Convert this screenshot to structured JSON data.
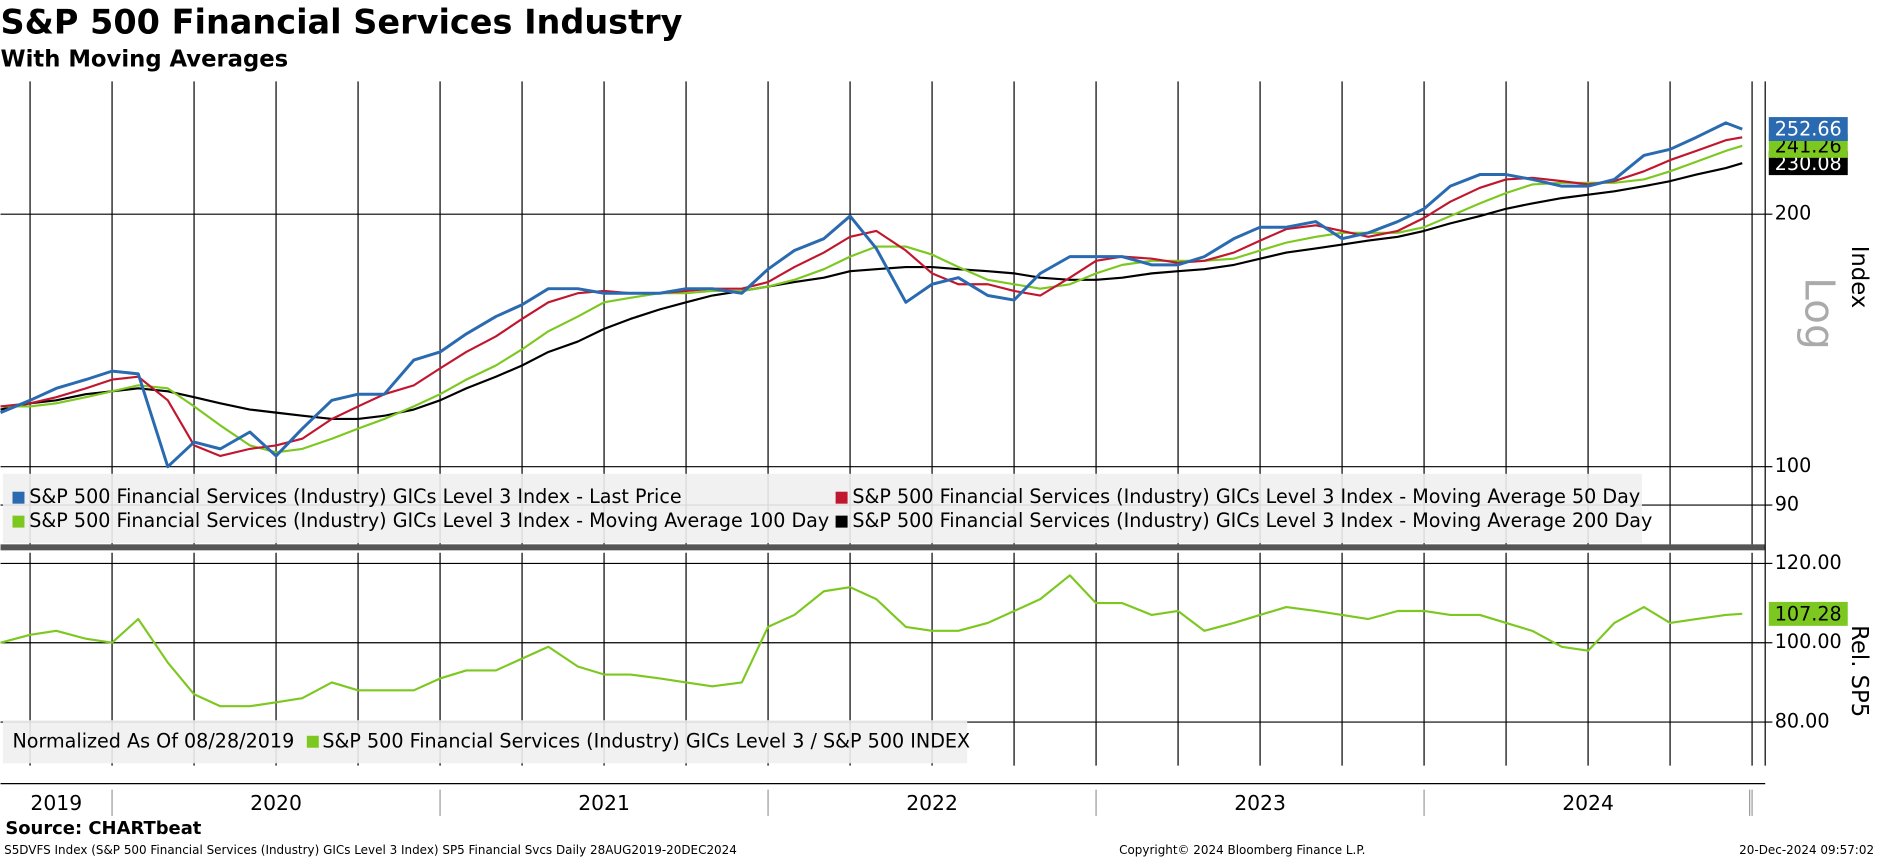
{
  "chart_data": [
    {
      "type": "line",
      "title": "S&P 500 Financial Services Industry",
      "subtitle": "With Moving Averages",
      "log": true,
      "y_axis_label": "Index",
      "scale_label": "Log",
      "x": [
        2019.66,
        2019.75,
        2019.83,
        2019.92,
        2020.0,
        2020.08,
        2020.17,
        2020.25,
        2020.33,
        2020.42,
        2020.5,
        2020.58,
        2020.67,
        2020.75,
        2020.83,
        2020.92,
        2021.0,
        2021.08,
        2021.17,
        2021.25,
        2021.33,
        2021.42,
        2021.5,
        2021.58,
        2021.67,
        2021.75,
        2021.83,
        2021.92,
        2022.0,
        2022.08,
        2022.17,
        2022.25,
        2022.33,
        2022.42,
        2022.5,
        2022.58,
        2022.67,
        2022.75,
        2022.83,
        2022.92,
        2023.0,
        2023.08,
        2023.17,
        2023.25,
        2023.33,
        2023.42,
        2023.5,
        2023.58,
        2023.67,
        2023.75,
        2023.83,
        2023.92,
        2024.0,
        2024.08,
        2024.17,
        2024.25,
        2024.33,
        2024.42,
        2024.5,
        2024.58,
        2024.67,
        2024.75,
        2024.83,
        2024.92,
        2024.97
      ],
      "xlim": [
        2019.66,
        2025.04
      ],
      "ylim": [
        80.8,
        288
      ],
      "yticks": [
        90,
        100,
        200
      ],
      "series": [
        {
          "name": "S&P 500 Financial Services (Industry) GICs Level 3 Index - Last Price",
          "color": "#2a6ab0",
          "last_label": true,
          "values": [
            116,
            120,
            124,
            127,
            130,
            129,
            100,
            107,
            105,
            110,
            103,
            111,
            120,
            122,
            122,
            134,
            137,
            144,
            151,
            156,
            163,
            163,
            161,
            161,
            161,
            163,
            163,
            161,
            172,
            181,
            187,
            199,
            182,
            157,
            165,
            168,
            160,
            158,
            170,
            178,
            178,
            178,
            174,
            174,
            178,
            187,
            193,
            193,
            196,
            187,
            190,
            196,
            203,
            216,
            223,
            223,
            220,
            216,
            216,
            220,
            235,
            239,
            247,
            257,
            252.66
          ]
        },
        {
          "name": "S&P 500 Financial Services (Industry) GICs Level 3 Index - Moving Average 50 Day",
          "color": "#c0172f",
          "last_label": false,
          "values": [
            118,
            119,
            121,
            124,
            127,
            128,
            120,
            106,
            103,
            105,
            106,
            108,
            114,
            118,
            122,
            125,
            131,
            137,
            143,
            150,
            157,
            161,
            162,
            161,
            161,
            162,
            163,
            163,
            166,
            173,
            180,
            188,
            191,
            181,
            170,
            165,
            165,
            162,
            160,
            168,
            176,
            178,
            177,
            175,
            176,
            180,
            186,
            192,
            194,
            191,
            188,
            191,
            198,
            207,
            215,
            220,
            221,
            219,
            217,
            219,
            225,
            232,
            238,
            245,
            247
          ]
        },
        {
          "name": "S&P 500 Financial Services (Industry) GICs Level 3 Index - Moving Average 100 Day",
          "color": "#7dc820",
          "last_label": true,
          "values": [
            118,
            118,
            119,
            121,
            123,
            125,
            124,
            118,
            112,
            106,
            104,
            105,
            108,
            111,
            114,
            118,
            122,
            127,
            132,
            138,
            145,
            151,
            157,
            159,
            161,
            161,
            162,
            162,
            164,
            167,
            172,
            178,
            183,
            183,
            179,
            173,
            167,
            165,
            163,
            165,
            170,
            174,
            176,
            176,
            176,
            177,
            181,
            185,
            188,
            190,
            190,
            190,
            193,
            199,
            206,
            212,
            217,
            218,
            218,
            218,
            220,
            225,
            231,
            238,
            241.26
          ]
        },
        {
          "name": "S&P 500 Financial Services (Industry) GICs Level 3 Index - Moving Average 200 Day",
          "color": "#000000",
          "last_label": true,
          "values": [
            117,
            119,
            120,
            122,
            123,
            124,
            123,
            121,
            119,
            117,
            116,
            115,
            114,
            114,
            115,
            117,
            120,
            124,
            128,
            132,
            137,
            141,
            146,
            150,
            154,
            157,
            160,
            162,
            164,
            166,
            168,
            171,
            172,
            173,
            173,
            172,
            171,
            170,
            168,
            167,
            167,
            168,
            170,
            171,
            172,
            174,
            177,
            180,
            182,
            184,
            186,
            188,
            191,
            195,
            199,
            203,
            206,
            209,
            211,
            213,
            216,
            219,
            223,
            227,
            230.08
          ]
        }
      ]
    },
    {
      "type": "line",
      "log": false,
      "y_axis_label": "Rel. SP5",
      "legend_note": "Normalized As Of 08/28/2019",
      "x": [
        2019.66,
        2019.75,
        2019.83,
        2019.92,
        2020.0,
        2020.08,
        2020.17,
        2020.25,
        2020.33,
        2020.42,
        2020.5,
        2020.58,
        2020.67,
        2020.75,
        2020.83,
        2020.92,
        2021.0,
        2021.08,
        2021.17,
        2021.25,
        2021.33,
        2021.42,
        2021.5,
        2021.58,
        2021.67,
        2021.75,
        2021.83,
        2021.92,
        2022.0,
        2022.08,
        2022.17,
        2022.25,
        2022.33,
        2022.42,
        2022.5,
        2022.58,
        2022.67,
        2022.75,
        2022.83,
        2022.92,
        2023.0,
        2023.08,
        2023.17,
        2023.25,
        2023.33,
        2023.42,
        2023.5,
        2023.58,
        2023.67,
        2023.75,
        2023.83,
        2023.92,
        2024.0,
        2024.08,
        2024.17,
        2024.25,
        2024.33,
        2024.42,
        2024.5,
        2024.58,
        2024.67,
        2024.75,
        2024.83,
        2024.92,
        2024.97
      ],
      "xlim": [
        2019.66,
        2025.04
      ],
      "ylim": [
        69,
        122.7
      ],
      "yticks": [
        {
          "value": 80,
          "label": "80.00"
        },
        {
          "value": 100,
          "label": "100.00"
        },
        {
          "value": 120,
          "label": "120.00"
        }
      ],
      "xticks": [
        {
          "value": 2019.83,
          "label": "2019"
        },
        {
          "value": 2020.5,
          "label": "2020"
        },
        {
          "value": 2021.5,
          "label": "2021"
        },
        {
          "value": 2022.5,
          "label": "2022"
        },
        {
          "value": 2023.5,
          "label": "2023"
        },
        {
          "value": 2024.5,
          "label": "2024"
        }
      ],
      "series": [
        {
          "name": "S&P 500 Financial Services (Industry) GICs Level 3 / S&P 500 INDEX",
          "color": "#7dc820",
          "last_label": true,
          "values": [
            100,
            102,
            103,
            101,
            100,
            106,
            95,
            87,
            84,
            84,
            85,
            86,
            90,
            88,
            88,
            88,
            91,
            93,
            93,
            96,
            99,
            94,
            92,
            92,
            91,
            90,
            89,
            90,
            104,
            107,
            113,
            114,
            111,
            104,
            103,
            103,
            105,
            108,
            111,
            117,
            110,
            110,
            107,
            108,
            103,
            105,
            107,
            109,
            108,
            107,
            106,
            108,
            108,
            107,
            107,
            105,
            103,
            99,
            98,
            105,
            109,
            105,
            106,
            107,
            107.28
          ]
        }
      ]
    }
  ],
  "source": "Source: CHARTbeat",
  "footer_left": "S5DVFS Index (S&P 500 Financial Services (Industry) GICs Level 3 Index) SP5 Financial Svcs  Daily 28AUG2019-20DEC2024",
  "copyright": "Copyright© 2024 Bloomberg Finance L.P.",
  "timestamp": "20-Dec-2024 09:57:02"
}
